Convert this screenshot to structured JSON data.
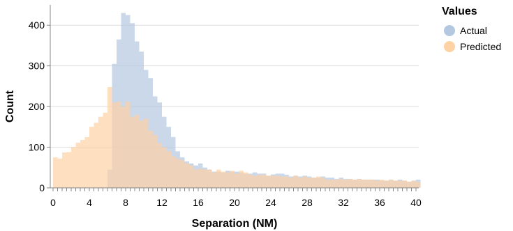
{
  "chart_data": {
    "type": "bar",
    "xlabel": "Separation (NM)",
    "ylabel": "Count",
    "xlim": [
      0,
      40
    ],
    "ylim": [
      0,
      450
    ],
    "bin_width": 0.5,
    "x_ticks": [
      0,
      4,
      8,
      12,
      16,
      20,
      24,
      28,
      32,
      36,
      40
    ],
    "y_ticks": [
      0,
      100,
      200,
      300,
      400
    ],
    "grid": "horizontal",
    "legend": {
      "title": "Values",
      "placement": "right"
    },
    "series": [
      {
        "name": "Actual",
        "color": "#b4c8e0",
        "values": [
          0,
          0,
          0,
          0,
          0,
          0,
          0,
          0,
          0,
          0,
          0,
          0,
          45,
          305,
          365,
          430,
          425,
          405,
          360,
          335,
          290,
          270,
          225,
          210,
          175,
          150,
          125,
          90,
          75,
          65,
          60,
          55,
          60,
          50,
          45,
          40,
          40,
          38,
          42,
          40,
          40,
          38,
          35,
          35,
          38,
          35,
          35,
          30,
          33,
          35,
          35,
          32,
          28,
          30,
          28,
          30,
          28,
          25,
          25,
          28,
          25,
          25,
          22,
          25,
          22,
          22,
          20,
          22,
          20,
          20,
          20,
          20,
          18,
          18,
          20,
          18,
          20,
          18,
          15,
          18,
          20
        ]
      },
      {
        "name": "Predicted",
        "color": "#fdd2a5",
        "values": [
          75,
          72,
          87,
          88,
          100,
          111,
          118,
          125,
          150,
          160,
          175,
          185,
          248,
          210,
          212,
          200,
          212,
          175,
          180,
          165,
          170,
          140,
          130,
          110,
          100,
          90,
          78,
          72,
          68,
          60,
          55,
          45,
          47,
          45,
          45,
          38,
          45,
          40,
          38,
          42,
          35,
          42,
          38,
          33,
          30,
          32,
          32,
          30,
          30,
          30,
          28,
          28,
          25,
          30,
          25,
          28,
          25,
          25,
          28,
          25,
          20,
          20,
          20,
          22,
          20,
          22,
          20,
          22,
          20,
          20,
          20,
          18,
          20,
          18,
          20,
          18,
          18,
          18,
          15,
          18,
          15
        ]
      }
    ]
  }
}
